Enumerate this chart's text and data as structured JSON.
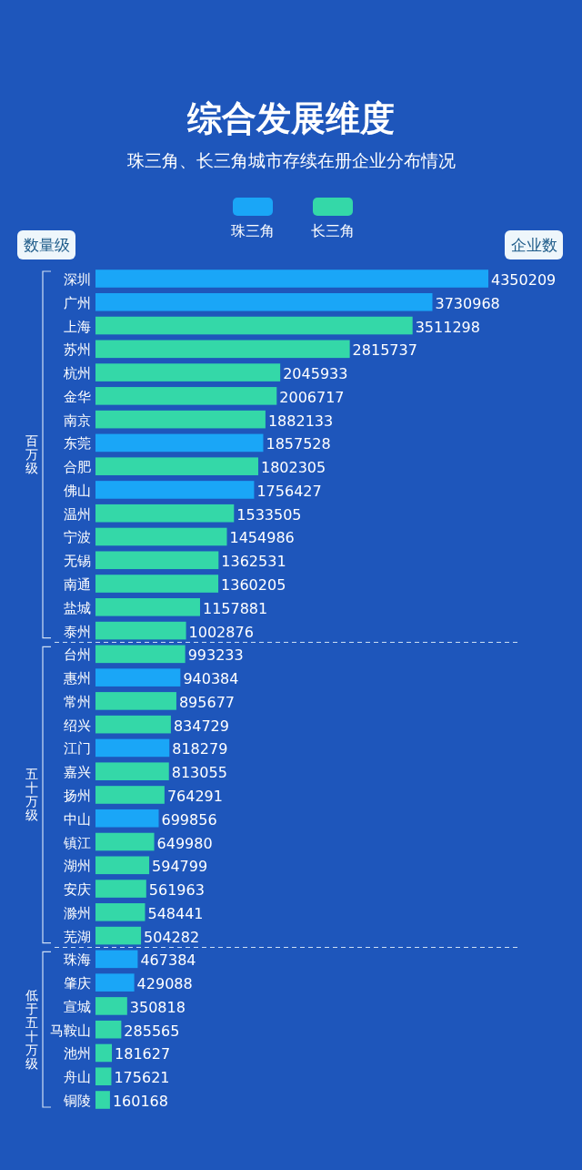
{
  "chart_data": {
    "type": "bar",
    "orientation": "horizontal",
    "title": "综合发展维度",
    "subtitle": "珠三角、长三角城市存续在册企业分布情况",
    "ylabel": "数量级",
    "xlabel": "企业数",
    "legend": "top",
    "data_labels": true,
    "categories": [
      "深圳",
      "广州",
      "上海",
      "苏州",
      "杭州",
      "金华",
      "南京",
      "东莞",
      "合肥",
      "佛山",
      "温州",
      "宁波",
      "无锡",
      "南通",
      "盐城",
      "泰州",
      "台州",
      "惠州",
      "常州",
      "绍兴",
      "江门",
      "嘉兴",
      "扬州",
      "中山",
      "镇江",
      "湖州",
      "安庆",
      "滁州",
      "芜湖",
      "珠海",
      "肇庆",
      "宣城",
      "马鞍山",
      "池州",
      "舟山",
      "铜陵"
    ],
    "series": [
      {
        "name": "珠三角",
        "color": "#1aa6f7",
        "values": [
          4350209,
          3730968,
          null,
          null,
          null,
          null,
          null,
          1857528,
          null,
          1756427,
          null,
          null,
          null,
          null,
          null,
          null,
          null,
          940384,
          null,
          null,
          818279,
          null,
          null,
          699856,
          null,
          null,
          null,
          null,
          null,
          467384,
          429088,
          null,
          null,
          null,
          null,
          null
        ]
      },
      {
        "name": "长三角",
        "color": "#34d8a8",
        "values": [
          null,
          null,
          3511298,
          2815737,
          2045933,
          2006717,
          1882133,
          null,
          1802305,
          null,
          1533505,
          1454986,
          1362531,
          1360205,
          1157881,
          1002876,
          993233,
          null,
          895677,
          834729,
          null,
          813055,
          764291,
          null,
          649980,
          594799,
          561963,
          548441,
          504282,
          null,
          null,
          350818,
          285565,
          181627,
          175621,
          160168
        ]
      }
    ],
    "ref_lines": [
      {
        "axis": "y",
        "value": "泰州",
        "line_style": "dashed",
        "color": "#cfe0f5"
      },
      {
        "axis": "y",
        "value": "芜湖",
        "line_style": "dashed",
        "color": "#cfe0f5"
      }
    ],
    "annotations": [
      "百万级",
      "五十万级",
      "低于五十万级"
    ]
  }
}
